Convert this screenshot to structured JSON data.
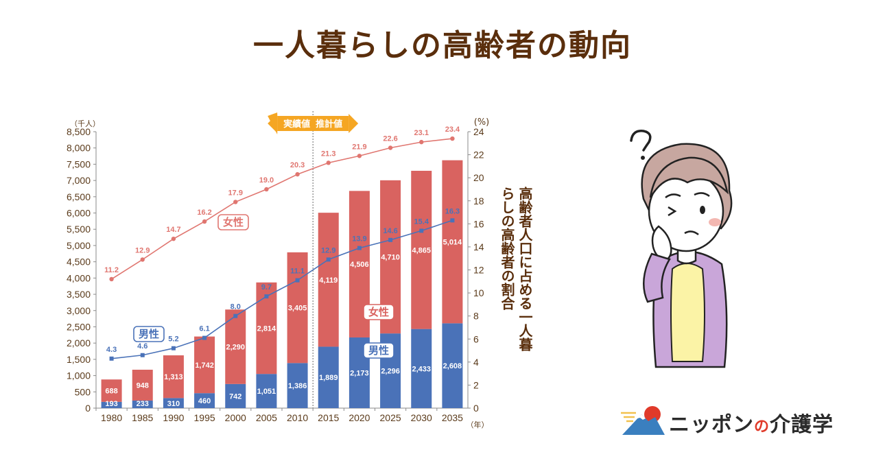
{
  "title": "一人暮らしの高齢者の動向",
  "chart_data": {
    "type": "bar+line",
    "categories": [
      "1980",
      "1985",
      "1990",
      "1995",
      "2000",
      "2005",
      "2010",
      "2015",
      "2020",
      "2025",
      "2030",
      "2035"
    ],
    "series": [
      {
        "name": "男性",
        "chart": "stacked-bar",
        "axis": "left",
        "color": "#4a72b8",
        "values": [
          193,
          233,
          310,
          460,
          742,
          1051,
          1386,
          1889,
          2173,
          2296,
          2433,
          2608
        ]
      },
      {
        "name": "女性",
        "chart": "stacked-bar",
        "axis": "left",
        "color": "#d96360",
        "values": [
          688,
          948,
          1313,
          1742,
          2290,
          2814,
          3405,
          4119,
          4506,
          4710,
          4865,
          5014
        ]
      },
      {
        "name": "女性",
        "chart": "line",
        "axis": "right",
        "color": "#e07670",
        "values": [
          11.2,
          12.9,
          14.7,
          16.2,
          17.9,
          19.0,
          20.3,
          21.3,
          21.9,
          22.6,
          23.1,
          23.4
        ]
      },
      {
        "name": "男性",
        "chart": "line",
        "axis": "right",
        "color": "#4a72b8",
        "values": [
          4.3,
          4.6,
          5.2,
          6.1,
          8.0,
          9.7,
          11.1,
          12.9,
          13.9,
          14.6,
          15.4,
          16.3
        ]
      }
    ],
    "left_axis": {
      "unit": "（千人）",
      "min": 0,
      "max": 8500,
      "step": 500
    },
    "right_axis": {
      "unit": "(%)",
      "min": 0,
      "max": 24,
      "step": 2,
      "title": "高齢者人口に占める一人暮らしの高齢者の割合"
    },
    "x_unit": "（年）",
    "annotation": {
      "actual": "実績値",
      "projected": "推計値",
      "divider_between": [
        "2010",
        "2015"
      ]
    }
  },
  "brand": {
    "name_a": "ニッポン",
    "name_no": "の",
    "name_b": "介護学"
  },
  "colors": {
    "title": "#5a2e0c",
    "accent_orange": "#f5a623",
    "axis_text": "#5a3a1a"
  }
}
